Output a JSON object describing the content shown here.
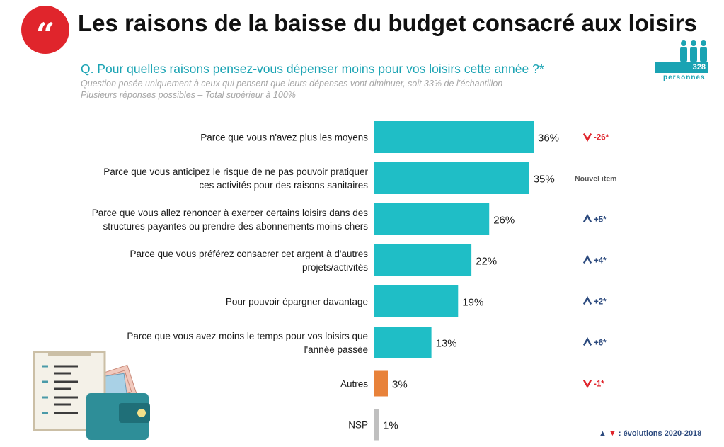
{
  "header": {
    "title": "Les raisons de la baisse du budget consacré aux loisirs",
    "question": "Q. Pour quelles raisons pensez-vous dépenser moins pour vos loisirs cette année ?*",
    "note_line1": "Question posée uniquement à ceux qui pensent que leurs dépenses vont diminuer, soit 33% de l’échantillon",
    "note_line2": "Plusieurs réponses possibles – Total supérieur à 100%"
  },
  "sample": {
    "count": "328",
    "label": "personnes"
  },
  "legend": {
    "text": ": évolutions 2020-2018"
  },
  "colors": {
    "teal": "#1fbec6",
    "orange": "#e8823a",
    "grey": "#bfbfbf",
    "up": "#2c4a7e",
    "down": "#e0252c",
    "neutral": "#595959"
  },
  "icons": {
    "quote": "quote-mark-icon",
    "people": "people-group-icon",
    "up": "arrow-up-icon",
    "down": "arrow-down-icon",
    "illustration": "clipboard-wallet-illustration"
  },
  "chart_data": {
    "type": "bar",
    "orientation": "horizontal",
    "categories": [
      [
        "Parce que vous n'avez plus les moyens"
      ],
      [
        "Parce que vous anticipez le risque de ne pas pouvoir pratiquer",
        "ces activités pour des raisons sanitaires"
      ],
      [
        "Parce que vous allez renoncer à exercer certains loisirs dans des",
        "structures payantes ou prendre des abonnements moins chers"
      ],
      [
        "Parce que vous préférez consacrer cet argent à d'autres",
        "projets/activités"
      ],
      [
        "Pour pouvoir épargner davantage"
      ],
      [
        "Parce que vous avez moins le temps pour vos loisirs que",
        "l'année passée"
      ],
      [
        "Autres"
      ],
      [
        "NSP"
      ]
    ],
    "values": [
      36,
      35,
      26,
      22,
      19,
      13,
      3,
      1
    ],
    "value_labels": [
      "36%",
      "35%",
      "26%",
      "22%",
      "19%",
      "13%",
      "3%",
      "1%"
    ],
    "bar_colors": [
      "teal",
      "teal",
      "teal",
      "teal",
      "teal",
      "teal",
      "orange",
      "grey"
    ],
    "evolutions": [
      {
        "direction": "down",
        "text": "-26*"
      },
      {
        "direction": "none",
        "text": "Nouvel item"
      },
      {
        "direction": "up",
        "text": "+5*"
      },
      {
        "direction": "up",
        "text": "+4*"
      },
      {
        "direction": "up",
        "text": "+2*"
      },
      {
        "direction": "up",
        "text": "+6*"
      },
      {
        "direction": "down",
        "text": "-1*"
      },
      {
        "direction": "none",
        "text": ""
      }
    ],
    "xlim": [
      0,
      36
    ],
    "grid": false,
    "legend": "bottom-right"
  }
}
